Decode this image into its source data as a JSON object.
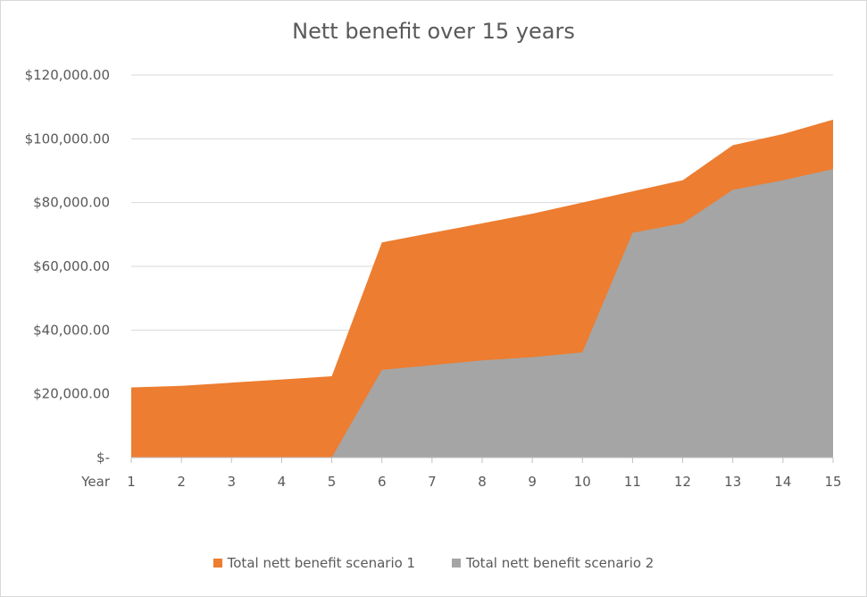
{
  "chart_data": {
    "type": "area",
    "title": "Nett benefit over 15 years",
    "xlabel": "Year",
    "ylabel": "",
    "categories": [
      "1",
      "2",
      "3",
      "4",
      "5",
      "6",
      "7",
      "8",
      "9",
      "10",
      "11",
      "12",
      "13",
      "14",
      "15"
    ],
    "ylim": [
      0,
      120000
    ],
    "y_ticks": [
      0,
      20000,
      40000,
      60000,
      80000,
      100000,
      120000
    ],
    "y_tick_labels": [
      "$-",
      "$20,000.00",
      "$40,000.00",
      "$60,000.00",
      "$80,000.00",
      "$100,000.00",
      "$120,000.00"
    ],
    "grid": true,
    "legend_position": "bottom",
    "series": [
      {
        "name": "Total nett benefit scenario 1",
        "color": "#ED7D31",
        "values": [
          22000,
          22500,
          23500,
          24500,
          25500,
          67500,
          70500,
          73500,
          76500,
          80000,
          83500,
          87000,
          98000,
          101500,
          106000
        ]
      },
      {
        "name": "Total nett benefit scenario 2",
        "color": "#A5A5A5",
        "values": [
          0,
          0,
          0,
          0,
          0,
          27500,
          29000,
          30500,
          31500,
          33000,
          70500,
          73500,
          84000,
          87000,
          90500
        ]
      }
    ]
  }
}
